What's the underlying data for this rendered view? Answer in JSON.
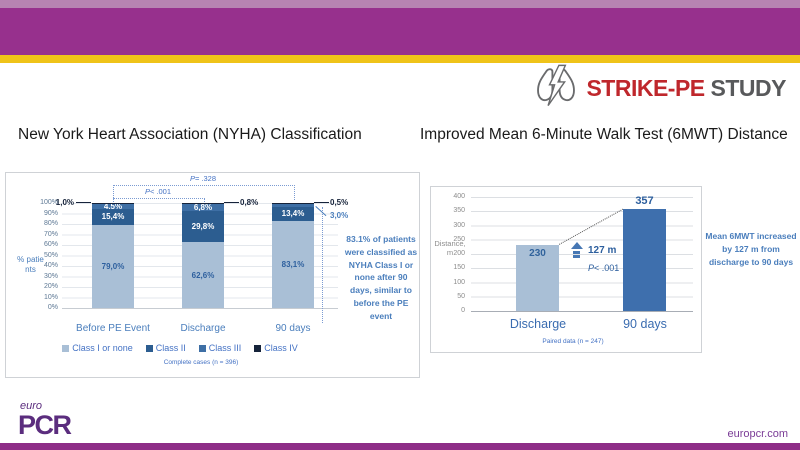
{
  "slide": {
    "brand": {
      "logo_icon": "lungs-lightning-icon",
      "study_name_red": "STRIKE-PE",
      "study_name_gray": "STUDY"
    },
    "left_title": "New York Heart Association (NYHA) Classification",
    "right_title": "Improved Mean 6-Minute Walk Test (6MWT) Distance",
    "footer": {
      "logo_line1": "euro",
      "logo_line2": "PCR",
      "website": "europcr.com"
    },
    "colors": {
      "header_purple": "#97308d",
      "header_purple_light": "#b783b2",
      "stripe_yellow": "#efc319",
      "brand_red": "#bf272c",
      "brand_gray": "#58595b",
      "footer_purple": "#8e2d87",
      "accent_blue": "#4a7ebc"
    }
  },
  "chart_data": [
    {
      "type": "bar",
      "subtype": "stacked",
      "title": "New York Heart Association (NYHA) Classification",
      "ylabel": "% patients",
      "ylim": [
        0,
        100
      ],
      "grid": true,
      "yticks": [
        "100%",
        "90%",
        "80%",
        "70%",
        "60%",
        "50%",
        "40%",
        "30%",
        "20%",
        "10%",
        "0%"
      ],
      "categories": [
        "Before PE Event",
        "Discharge",
        "90 days"
      ],
      "series": [
        {
          "name": "Class I or none",
          "color": "#a9bfd6",
          "label_color": "#2d5f9e",
          "values": [
            79.0,
            62.6,
            83.1
          ],
          "labels": [
            "79,0%",
            "62,6%",
            "83,1%"
          ],
          "label_inside": [
            true,
            true,
            true
          ]
        },
        {
          "name": "Class II",
          "color": "#2c5d90",
          "label_color": "#ffffff",
          "values": [
            15.4,
            29.8,
            13.4
          ],
          "labels": [
            "15,4%",
            "29,8%",
            "13,4%"
          ],
          "label_inside": [
            true,
            true,
            true
          ]
        },
        {
          "name": "Class III",
          "color": "#3e6fa5",
          "label_color": "#ffffff",
          "values": [
            4.5,
            6.8,
            3.0
          ],
          "labels": [
            "4,5%",
            "6,8%",
            "3,0%"
          ],
          "label_inside": [
            true,
            true,
            false
          ]
        },
        {
          "name": "Class IV",
          "color": "#16233a",
          "label_color": "#ffffff",
          "values": [
            1.0,
            0.8,
            0.5
          ],
          "labels": [
            "1,0%",
            "0,8%",
            "0,5%"
          ],
          "label_inside": [
            false,
            false,
            false
          ]
        }
      ],
      "external_labels": [
        {
          "text": "1,0%",
          "bar": "Before PE Event",
          "series": "Class IV"
        },
        {
          "text": "0,8%",
          "bar": "Discharge",
          "series": "Class IV"
        },
        {
          "text": "0,5%",
          "bar": "90 days",
          "series": "Class IV"
        },
        {
          "text": "3,0%",
          "bar": "90 days",
          "series": "Class III"
        }
      ],
      "pvalues": [
        {
          "label": "P= .328",
          "span": [
            "Before PE Event",
            "90 days"
          ]
        },
        {
          "label": "P< .001",
          "span": [
            "Before PE Event",
            "Discharge"
          ]
        }
      ],
      "caption": "Complete cases (n = 396)",
      "annotation": {
        "bold": "83.1%",
        "rest": " of patients were classified as NYHA Class I or none after 90 days, similar to before the PE event"
      },
      "legend_position": "bottom"
    },
    {
      "type": "bar",
      "title": "Improved Mean 6-Minute Walk Test (6MWT) Distance",
      "ylabel": "Distance, m",
      "ylim": [
        0,
        400
      ],
      "grid": true,
      "yticks": [
        "400",
        "350",
        "300",
        "250",
        "200",
        "150",
        "100",
        "50",
        "0"
      ],
      "categories": [
        "Discharge",
        "90 days"
      ],
      "values": [
        230,
        357
      ],
      "value_labels": [
        "230",
        "357"
      ],
      "value_label_pos": [
        "inside",
        "above"
      ],
      "bar_colors": [
        "#a9bfd6",
        "#3e6fad"
      ],
      "delta_annotation": {
        "icon": "up-arrow-icon",
        "value": "127 m",
        "pvalue": "P< .001"
      },
      "caption": "Paired data (n = 247)",
      "side_annotation": {
        "pre": "Mean 6MWT increased by ",
        "bold": "127 m",
        "post": " from discharge to 90 days"
      }
    }
  ]
}
